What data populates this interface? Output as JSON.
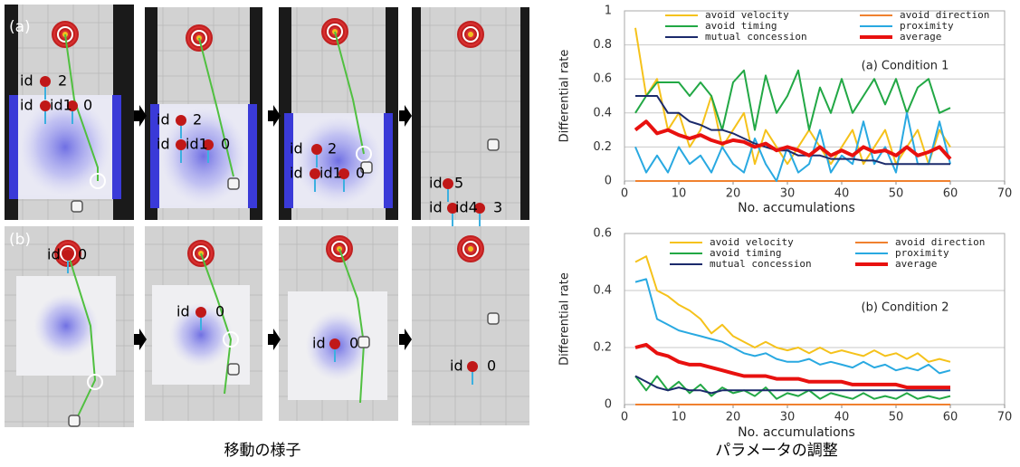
{
  "screenshots": {
    "row_labels": [
      "(a)",
      "(b)"
    ],
    "panels": [
      {
        "labels": [
          "id",
          "2",
          "id",
          "id1",
          "0"
        ]
      },
      {
        "labels": [
          "id",
          "2",
          "id",
          "id1",
          "0"
        ]
      },
      {
        "labels": [
          "id",
          "2",
          "id",
          "id1",
          "0"
        ]
      },
      {
        "labels": [
          "id",
          "5",
          "id",
          "id4",
          "3"
        ]
      },
      {
        "labels": [
          "id",
          "0"
        ]
      },
      {
        "labels": [
          "id",
          "0"
        ]
      },
      {
        "labels": [
          "id",
          "0"
        ]
      },
      {
        "labels": [
          "id",
          "0"
        ]
      }
    ],
    "caption": "移動の様子"
  },
  "charts_caption": "パラメータの調整",
  "chart_data": [
    {
      "type": "line",
      "annotation": "(a) Condition 1",
      "y_label": "Differential rate",
      "x_label": "No. accumulations",
      "xlim": [
        0,
        70
      ],
      "xticks": [
        0,
        10,
        20,
        30,
        40,
        50,
        60,
        70
      ],
      "ylim": [
        0,
        1
      ],
      "yticks": [
        0,
        0.2,
        0.4,
        0.6,
        0.8,
        1
      ],
      "grid": true,
      "x": [
        2,
        4,
        6,
        8,
        10,
        12,
        14,
        16,
        18,
        20,
        22,
        24,
        26,
        28,
        30,
        32,
        34,
        36,
        38,
        40,
        42,
        44,
        46,
        48,
        50,
        52,
        54,
        56,
        58,
        60
      ],
      "series": [
        {
          "name": "avoid velocity",
          "color": "#f5c21b",
          "values": [
            0.9,
            0.5,
            0.6,
            0.3,
            0.4,
            0.2,
            0.3,
            0.5,
            0.2,
            0.3,
            0.4,
            0.1,
            0.3,
            0.2,
            0.1,
            0.2,
            0.3,
            0.2,
            0.1,
            0.2,
            0.3,
            0.1,
            0.2,
            0.3,
            0.1,
            0.2,
            0.3,
            0.1,
            0.3,
            0.2
          ]
        },
        {
          "name": "avoid direction",
          "color": "#f0812f",
          "values": [
            0,
            0,
            0,
            0,
            0,
            0,
            0,
            0,
            0,
            0,
            0,
            0,
            0,
            0,
            0,
            0,
            0,
            0,
            0,
            0,
            0,
            0,
            0,
            0,
            0,
            0,
            0,
            0,
            0,
            0
          ]
        },
        {
          "name": "avoid timing",
          "color": "#22a845",
          "values": [
            0.4,
            0.5,
            0.58,
            0.58,
            0.58,
            0.5,
            0.58,
            0.5,
            0.3,
            0.58,
            0.65,
            0.3,
            0.62,
            0.4,
            0.5,
            0.65,
            0.3,
            0.55,
            0.4,
            0.6,
            0.4,
            0.5,
            0.6,
            0.45,
            0.6,
            0.4,
            0.55,
            0.6,
            0.4,
            0.43
          ]
        },
        {
          "name": "proximity",
          "color": "#29a9e1",
          "values": [
            0.2,
            0.05,
            0.15,
            0.05,
            0.2,
            0.1,
            0.15,
            0.05,
            0.2,
            0.1,
            0.05,
            0.25,
            0.1,
            0,
            0.2,
            0.05,
            0.1,
            0.3,
            0.05,
            0.15,
            0.1,
            0.35,
            0.1,
            0.2,
            0.05,
            0.4,
            0.1,
            0.1,
            0.35,
            0.1
          ]
        },
        {
          "name": "mutual concession",
          "color": "#1b2a6b",
          "values": [
            0.5,
            0.5,
            0.5,
            0.4,
            0.4,
            0.35,
            0.33,
            0.3,
            0.3,
            0.28,
            0.25,
            0.22,
            0.2,
            0.18,
            0.18,
            0.15,
            0.15,
            0.15,
            0.13,
            0.13,
            0.13,
            0.12,
            0.12,
            0.1,
            0.1,
            0.1,
            0.1,
            0.1,
            0.1,
            0.1
          ]
        },
        {
          "name": "average",
          "color": "#e8110f",
          "values": [
            0.3,
            0.35,
            0.28,
            0.3,
            0.27,
            0.25,
            0.27,
            0.24,
            0.22,
            0.24,
            0.23,
            0.2,
            0.22,
            0.18,
            0.2,
            0.18,
            0.15,
            0.2,
            0.15,
            0.18,
            0.15,
            0.2,
            0.17,
            0.18,
            0.15,
            0.2,
            0.15,
            0.17,
            0.2,
            0.13
          ]
        }
      ]
    },
    {
      "type": "line",
      "annotation": "(b) Condition 2",
      "y_label": "Differential rate",
      "x_label": "No. accumulations",
      "xlim": [
        0,
        70
      ],
      "xticks": [
        0,
        10,
        20,
        30,
        40,
        50,
        60,
        70
      ],
      "ylim": [
        0,
        0.6
      ],
      "yticks": [
        0,
        0.2,
        0.4,
        0.6
      ],
      "grid": true,
      "x": [
        2,
        4,
        6,
        8,
        10,
        12,
        14,
        16,
        18,
        20,
        22,
        24,
        26,
        28,
        30,
        32,
        34,
        36,
        38,
        40,
        42,
        44,
        46,
        48,
        50,
        52,
        54,
        56,
        58,
        60
      ],
      "series": [
        {
          "name": "avoid velocity",
          "color": "#f5c21b",
          "values": [
            0.5,
            0.52,
            0.4,
            0.38,
            0.35,
            0.33,
            0.3,
            0.25,
            0.28,
            0.24,
            0.22,
            0.2,
            0.22,
            0.2,
            0.19,
            0.2,
            0.18,
            0.2,
            0.18,
            0.19,
            0.18,
            0.17,
            0.19,
            0.17,
            0.18,
            0.16,
            0.18,
            0.15,
            0.16,
            0.15
          ]
        },
        {
          "name": "avoid direction",
          "color": "#f0812f",
          "values": [
            0,
            0,
            0,
            0,
            0,
            0,
            0,
            0,
            0,
            0,
            0,
            0,
            0,
            0,
            0,
            0,
            0,
            0,
            0,
            0,
            0,
            0,
            0,
            0,
            0,
            0,
            0,
            0,
            0,
            0
          ]
        },
        {
          "name": "avoid timing",
          "color": "#22a845",
          "values": [
            0.1,
            0.05,
            0.1,
            0.05,
            0.08,
            0.04,
            0.07,
            0.03,
            0.06,
            0.04,
            0.05,
            0.03,
            0.06,
            0.02,
            0.04,
            0.03,
            0.05,
            0.02,
            0.04,
            0.03,
            0.02,
            0.04,
            0.02,
            0.03,
            0.02,
            0.04,
            0.02,
            0.03,
            0.02,
            0.03
          ]
        },
        {
          "name": "proximity",
          "color": "#29a9e1",
          "values": [
            0.43,
            0.44,
            0.3,
            0.28,
            0.26,
            0.25,
            0.24,
            0.23,
            0.22,
            0.2,
            0.18,
            0.17,
            0.18,
            0.16,
            0.15,
            0.15,
            0.16,
            0.14,
            0.15,
            0.14,
            0.13,
            0.15,
            0.13,
            0.14,
            0.12,
            0.13,
            0.12,
            0.14,
            0.11,
            0.12
          ]
        },
        {
          "name": "mutual concession",
          "color": "#1b2a6b",
          "values": [
            0.1,
            0.08,
            0.06,
            0.05,
            0.06,
            0.05,
            0.05,
            0.04,
            0.05,
            0.05,
            0.05,
            0.05,
            0.05,
            0.05,
            0.05,
            0.05,
            0.05,
            0.05,
            0.05,
            0.05,
            0.05,
            0.05,
            0.05,
            0.05,
            0.05,
            0.05,
            0.05,
            0.05,
            0.05,
            0.05
          ]
        },
        {
          "name": "average",
          "color": "#e8110f",
          "values": [
            0.2,
            0.21,
            0.18,
            0.17,
            0.15,
            0.14,
            0.14,
            0.13,
            0.12,
            0.11,
            0.1,
            0.1,
            0.1,
            0.09,
            0.09,
            0.09,
            0.08,
            0.08,
            0.08,
            0.08,
            0.07,
            0.07,
            0.07,
            0.07,
            0.07,
            0.06,
            0.06,
            0.06,
            0.06,
            0.06
          ]
        }
      ]
    }
  ]
}
